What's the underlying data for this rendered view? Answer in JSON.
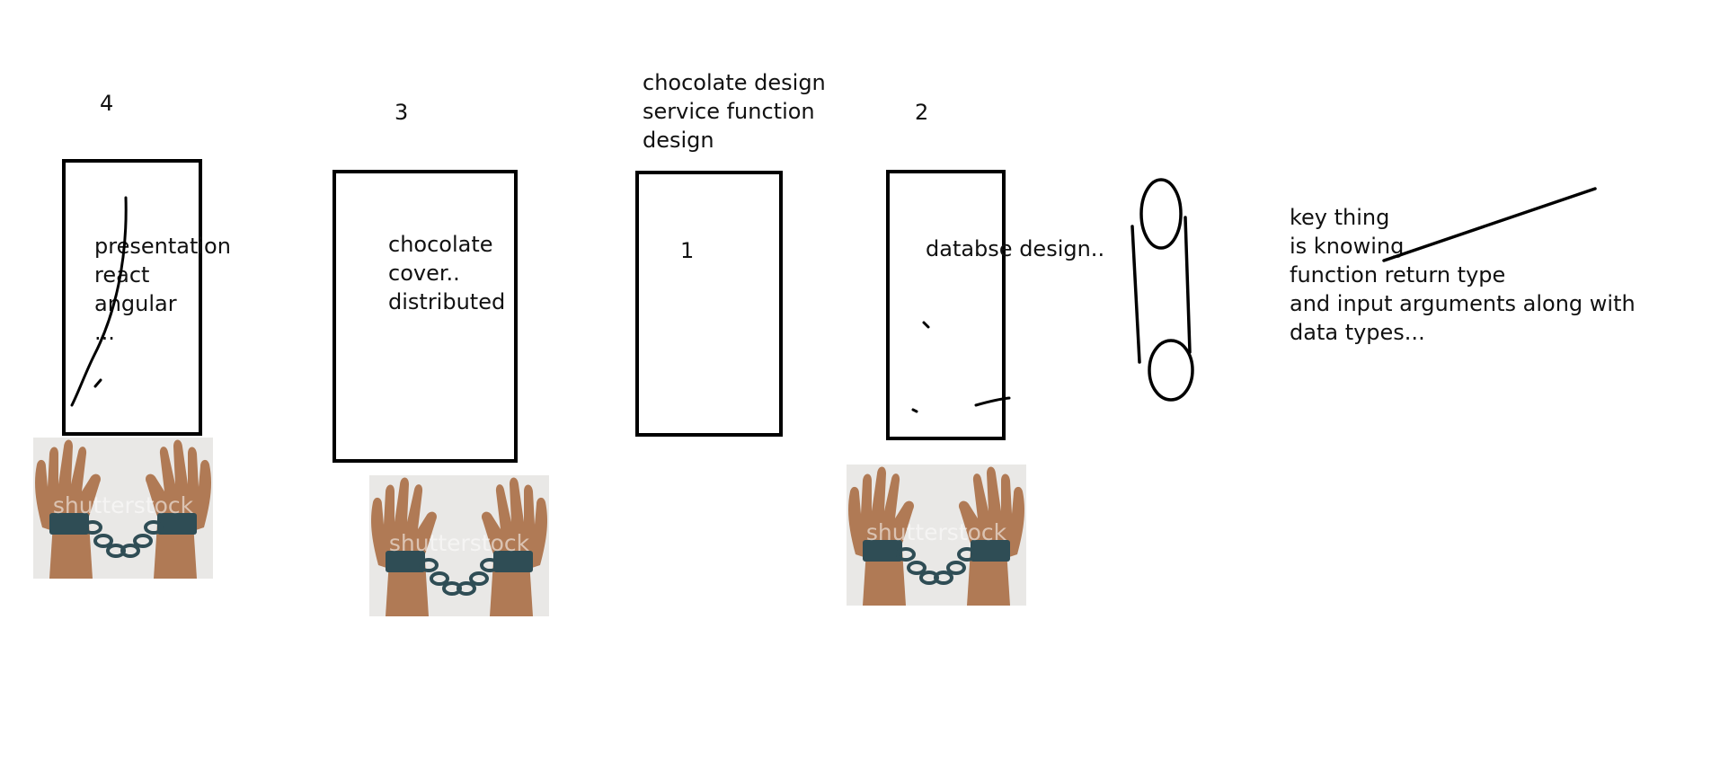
{
  "columns": [
    {
      "number": "4",
      "text": [
        "presentation",
        "react",
        "angular",
        "..."
      ],
      "has_image": true
    },
    {
      "number": "3",
      "text": [
        "chocolate",
        "cover..",
        "distributed"
      ],
      "has_image": true
    },
    {
      "number": "1",
      "heading": [
        "chocolate design",
        "service function",
        "design"
      ]
    },
    {
      "number": "2",
      "text": [
        "databse design.."
      ],
      "has_image": true
    }
  ],
  "note": [
    "key thing",
    "is knowing",
    "function return type",
    "and input arguments along with",
    "data types..."
  ],
  "image": {
    "watermark": "shutterstock",
    "icon": "chained-hands-icon"
  },
  "colors": {
    "ink": "#000000",
    "skin": "#b07a55",
    "cuff": "#2f4d55",
    "image_bg": "#e9e8e6"
  }
}
